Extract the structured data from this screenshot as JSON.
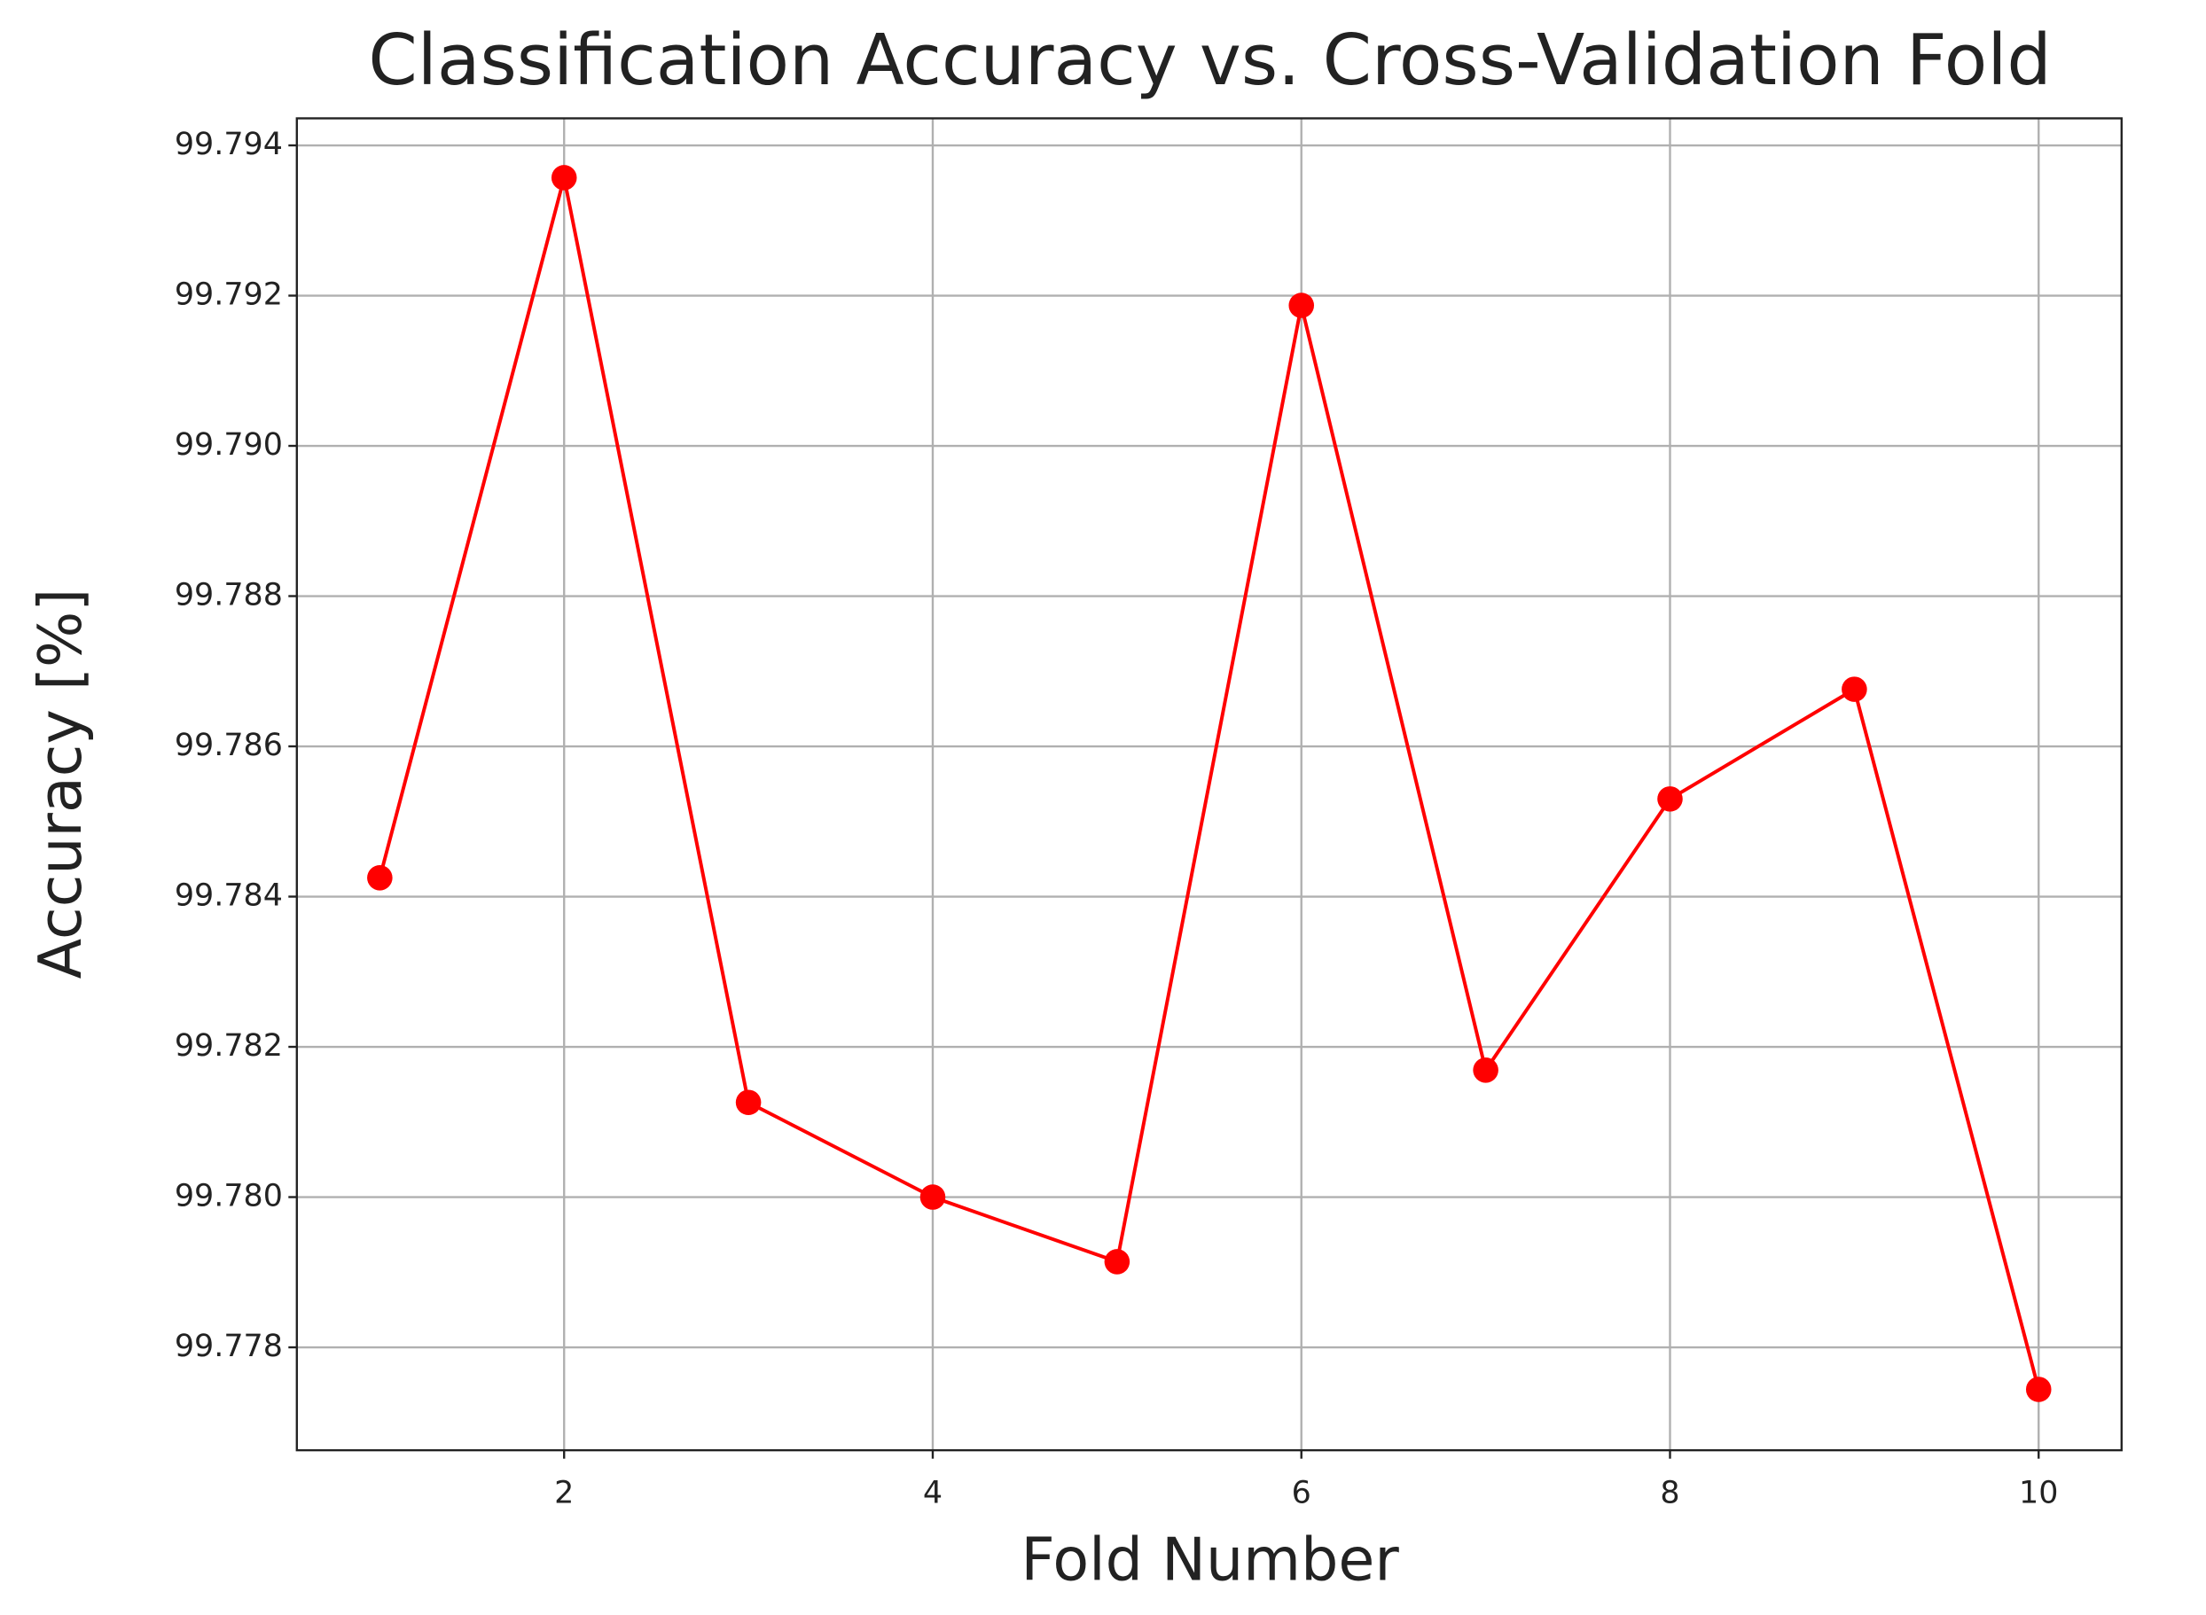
{
  "chart_data": {
    "type": "line",
    "title": "Classification Accuracy vs. Cross-Validation Fold",
    "x_label": "Fold Number",
    "y_label": "Accuracy [%]",
    "x": [
      1,
      2,
      3,
      4,
      5,
      6,
      7,
      8,
      9,
      10
    ],
    "series": [
      {
        "name": "Accuracy",
        "color": "#ff0000",
        "values": [
          99.78425,
          99.79357,
          99.78126,
          99.78,
          99.77914,
          99.79187,
          99.78169,
          99.7853,
          99.78676,
          99.77744
        ]
      }
    ],
    "xlim": [
      0.55,
      10.45
    ],
    "xticks": [
      2,
      4,
      6,
      8,
      10
    ],
    "ylim": [
      99.77663,
      99.79436
    ],
    "yticks": [
      {
        "value": 99.778,
        "label": "99.778"
      },
      {
        "value": 99.78,
        "label": "99.780"
      },
      {
        "value": 99.782,
        "label": "99.782"
      },
      {
        "value": 99.784,
        "label": "99.784"
      },
      {
        "value": 99.786,
        "label": "99.786"
      },
      {
        "value": 99.788,
        "label": "99.788"
      },
      {
        "value": 99.79,
        "label": "99.790"
      },
      {
        "value": 99.792,
        "label": "99.792"
      },
      {
        "value": 99.794,
        "label": "99.794"
      }
    ],
    "grid": true
  }
}
